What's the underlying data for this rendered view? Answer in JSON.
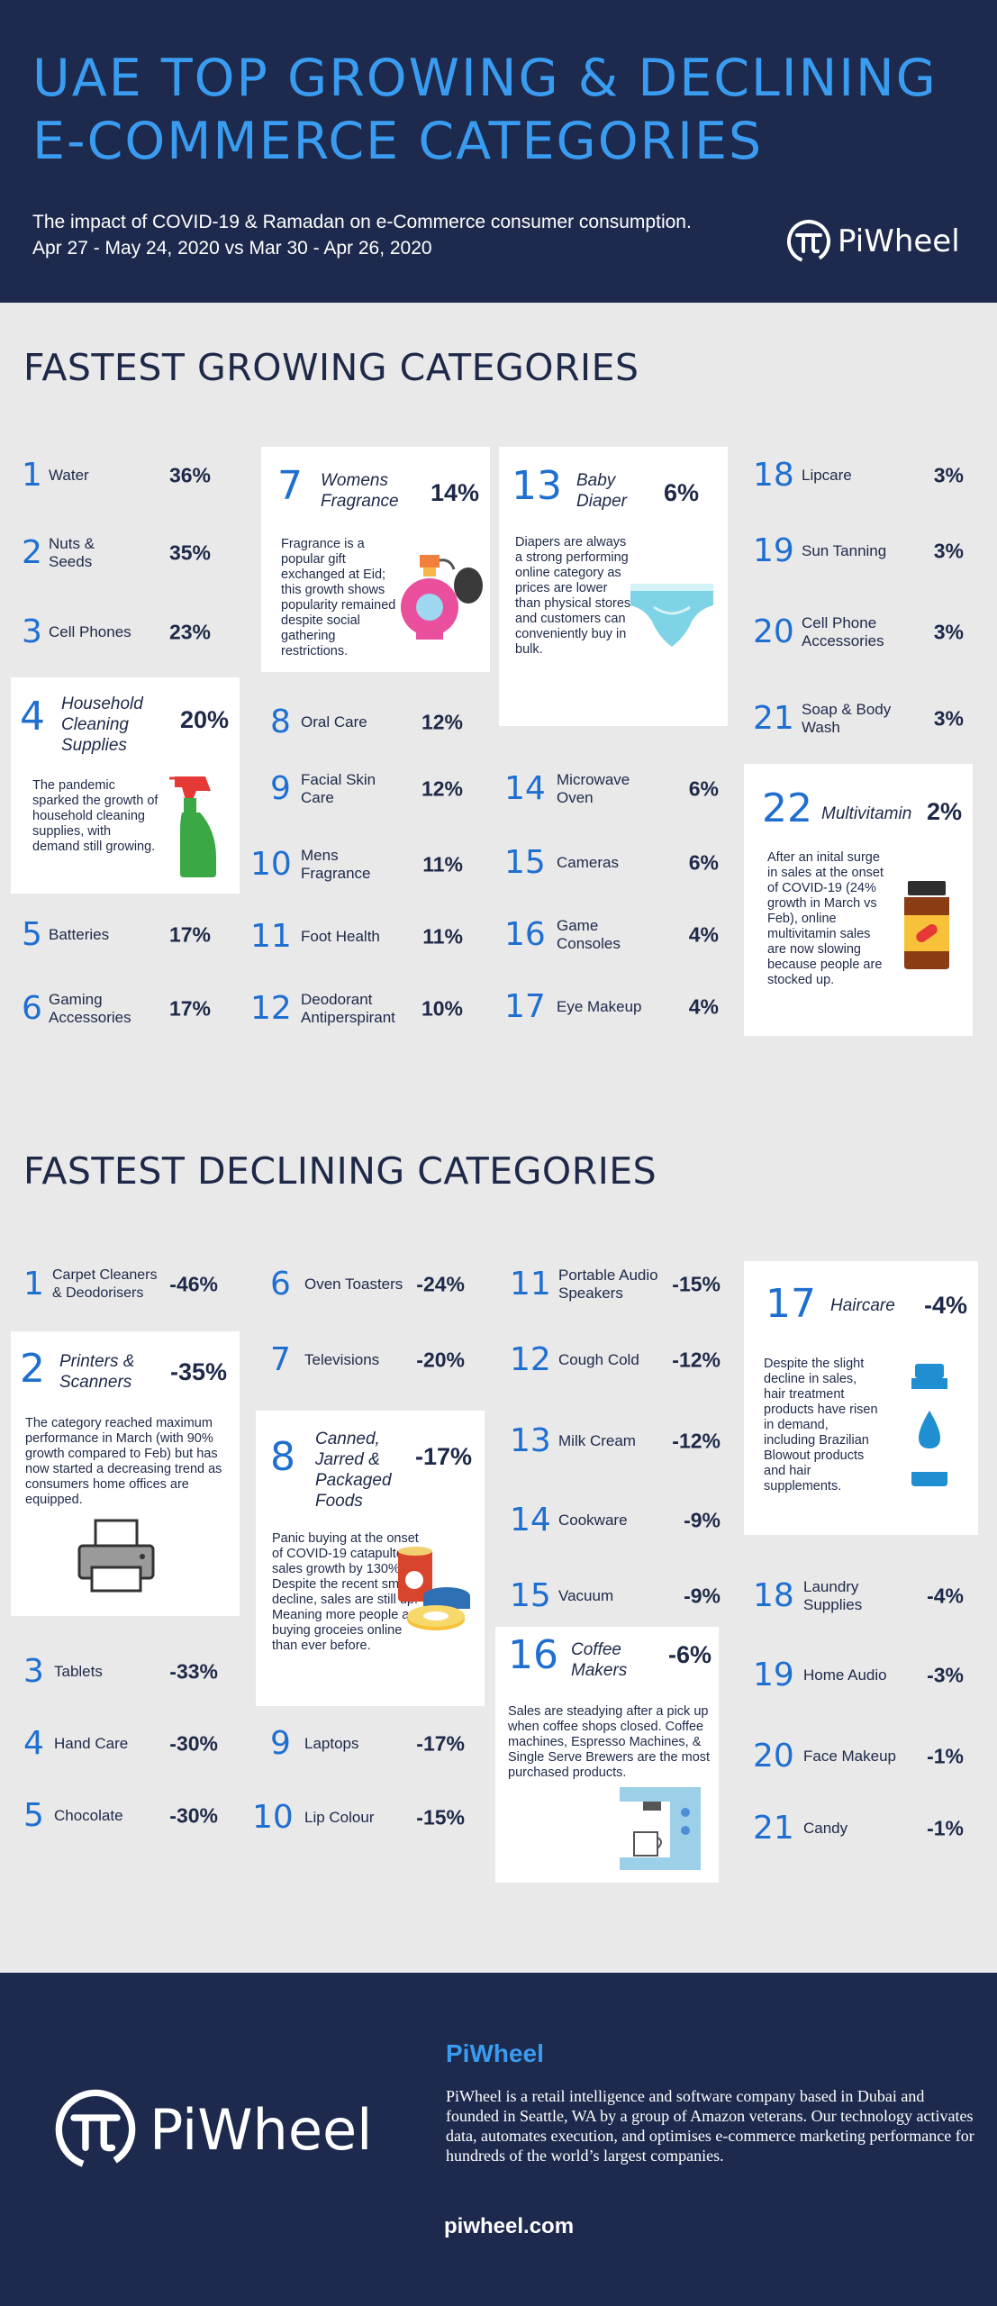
{
  "header": {
    "title_line1": "UAE TOP GROWING & DECLINING",
    "title_line2": "E-COMMERCE CATEGORIES",
    "subtitle_line1": "The impact of COVID-19 & Ramadan on e-Commerce consumer consumption.",
    "subtitle_line2": "Apr 27 - May 24, 2020 vs Mar 30 - Apr 26, 2020",
    "logo_text": "PiWheel"
  },
  "colors": {
    "navy": "#1d2a4d",
    "accent_blue": "#3a9cf0",
    "number_blue": "#1f6fd1",
    "background": "#e9e9e9",
    "card": "#ffffff"
  },
  "growing": {
    "title": "FASTEST GROWING CATEGORIES",
    "items": [
      {
        "num": "1",
        "name": "Water",
        "pct": "36%"
      },
      {
        "num": "2",
        "name": "Nuts &\nSeeds",
        "pct": "35%"
      },
      {
        "num": "3",
        "name": "Cell Phones",
        "pct": "23%"
      },
      {
        "num": "5",
        "name": "Batteries",
        "pct": "17%"
      },
      {
        "num": "6",
        "name": "Gaming\nAccessories",
        "pct": "17%"
      },
      {
        "num": "8",
        "name": "Oral Care",
        "pct": "12%"
      },
      {
        "num": "9",
        "name": "Facial Skin\nCare",
        "pct": "12%"
      },
      {
        "num": "10",
        "name": "Mens\nFragrance",
        "pct": "11%"
      },
      {
        "num": "11",
        "name": "Foot Health",
        "pct": "11%"
      },
      {
        "num": "12",
        "name": "Deodorant\nAntiperspirant",
        "pct": "10%"
      },
      {
        "num": "14",
        "name": "Microwave\nOven",
        "pct": "6%"
      },
      {
        "num": "15",
        "name": "Cameras",
        "pct": "6%"
      },
      {
        "num": "16",
        "name": "Game\nConsoles",
        "pct": "4%"
      },
      {
        "num": "17",
        "name": "Eye Makeup",
        "pct": "4%"
      },
      {
        "num": "18",
        "name": "Lipcare",
        "pct": "3%"
      },
      {
        "num": "19",
        "name": "Sun Tanning",
        "pct": "3%"
      },
      {
        "num": "20",
        "name": "Cell Phone\nAccessories",
        "pct": "3%"
      },
      {
        "num": "21",
        "name": "Soap & Body\nWash",
        "pct": "3%"
      }
    ],
    "cards": {
      "c4": {
        "num": "4",
        "name": "Household\nCleaning\nSupplies",
        "pct": "20%",
        "desc": "The pandemic sparked the growth of household cleaning supplies, with demand still growing.",
        "icon": "spray-bottle-icon"
      },
      "c7": {
        "num": "7",
        "name": "Womens\nFragrance",
        "pct": "14%",
        "desc": "Fragrance is a popular gift exchanged at Eid; this growth shows popularity remained despite social gathering restrictions.",
        "icon": "perfume-icon"
      },
      "c13": {
        "num": "13",
        "name": "Baby\nDiaper",
        "pct": "6%",
        "desc": "Diapers are always a strong performing online category as prices are lower than physical stores and customers can conveniently buy in bulk.",
        "icon": "diaper-icon"
      },
      "c22": {
        "num": "22",
        "name": "Multivitamin",
        "pct": "2%",
        "desc": "After an inital surge in sales at the onset of COVID-19 (24% growth in March vs Feb), online multivitamin sales are now slowing because people are stocked up.",
        "icon": "pill-bottle-icon"
      }
    }
  },
  "declining": {
    "title": "FASTEST DECLINING CATEGORIES",
    "items": [
      {
        "num": "1",
        "name": "Carpet Cleaners\n& Deodorisers",
        "pct": "-46%"
      },
      {
        "num": "3",
        "name": "Tablets",
        "pct": "-33%"
      },
      {
        "num": "4",
        "name": "Hand Care",
        "pct": "-30%"
      },
      {
        "num": "5",
        "name": "Chocolate",
        "pct": "-30%"
      },
      {
        "num": "6",
        "name": "Oven Toasters",
        "pct": "-24%"
      },
      {
        "num": "7",
        "name": "Televisions",
        "pct": "-20%"
      },
      {
        "num": "9",
        "name": "Laptops",
        "pct": "-17%"
      },
      {
        "num": "10",
        "name": "Lip Colour",
        "pct": "-15%"
      },
      {
        "num": "11",
        "name": "Portable Audio\nSpeakers",
        "pct": "-15%"
      },
      {
        "num": "12",
        "name": "Cough Cold",
        "pct": "-12%"
      },
      {
        "num": "13",
        "name": "Milk Cream",
        "pct": "-12%"
      },
      {
        "num": "14",
        "name": "Cookware",
        "pct": "-9%"
      },
      {
        "num": "15",
        "name": "Vacuum",
        "pct": "-9%"
      },
      {
        "num": "18",
        "name": "Laundry\nSupplies",
        "pct": "-4%"
      },
      {
        "num": "19",
        "name": "Home Audio",
        "pct": "-3%"
      },
      {
        "num": "20",
        "name": "Face Makeup",
        "pct": "-1%"
      },
      {
        "num": "21",
        "name": "Candy",
        "pct": "-1%"
      }
    ],
    "cards": {
      "c2": {
        "num": "2",
        "name": "Printers &\nScanners",
        "pct": "-35%",
        "desc": "The category reached maximum performance in March (with 90% growth compared to Feb) but has now started a decreasing trend as consumers home offices are equipped.",
        "icon": "printer-icon"
      },
      "c8": {
        "num": "8",
        "name": "Canned,\nJarred &\nPackaged\nFoods",
        "pct": "-17%",
        "desc": "Panic buying at the onset of COVID-19 catapulted sales growth by 130%. Despite the recent small decline, sales are still up. Meaning more people are buying groceies online than ever before.",
        "icon": "canned-food-icon"
      },
      "c16": {
        "num": "16",
        "name": "Coffee\nMakers",
        "pct": "-6%",
        "desc": "Sales are steadying after a pick up when coffee shops closed. Coffee machines, Espresso Machines, & Single Serve Brewers are the most purchased products.",
        "icon": "coffee-maker-icon"
      },
      "c17": {
        "num": "17",
        "name": "Haircare",
        "pct": "-4%",
        "desc": "Despite the slight decline in sales, hair treatment products have risen in demand, including Brazilian Blowout products and hair supplements.",
        "icon": "shampoo-icon"
      }
    }
  },
  "footer": {
    "brand": "PiWheel",
    "description": "PiWheel  is a retail intelligence and software company based in Dubai and founded in Seattle, WA by a group of Amazon veterans. Our technology activates data, automates execution, and optimises e-commerce marketing performance for hundreds of the world’s largest companies.",
    "logo_text": "PiWheel",
    "url": "piwheel.com"
  }
}
